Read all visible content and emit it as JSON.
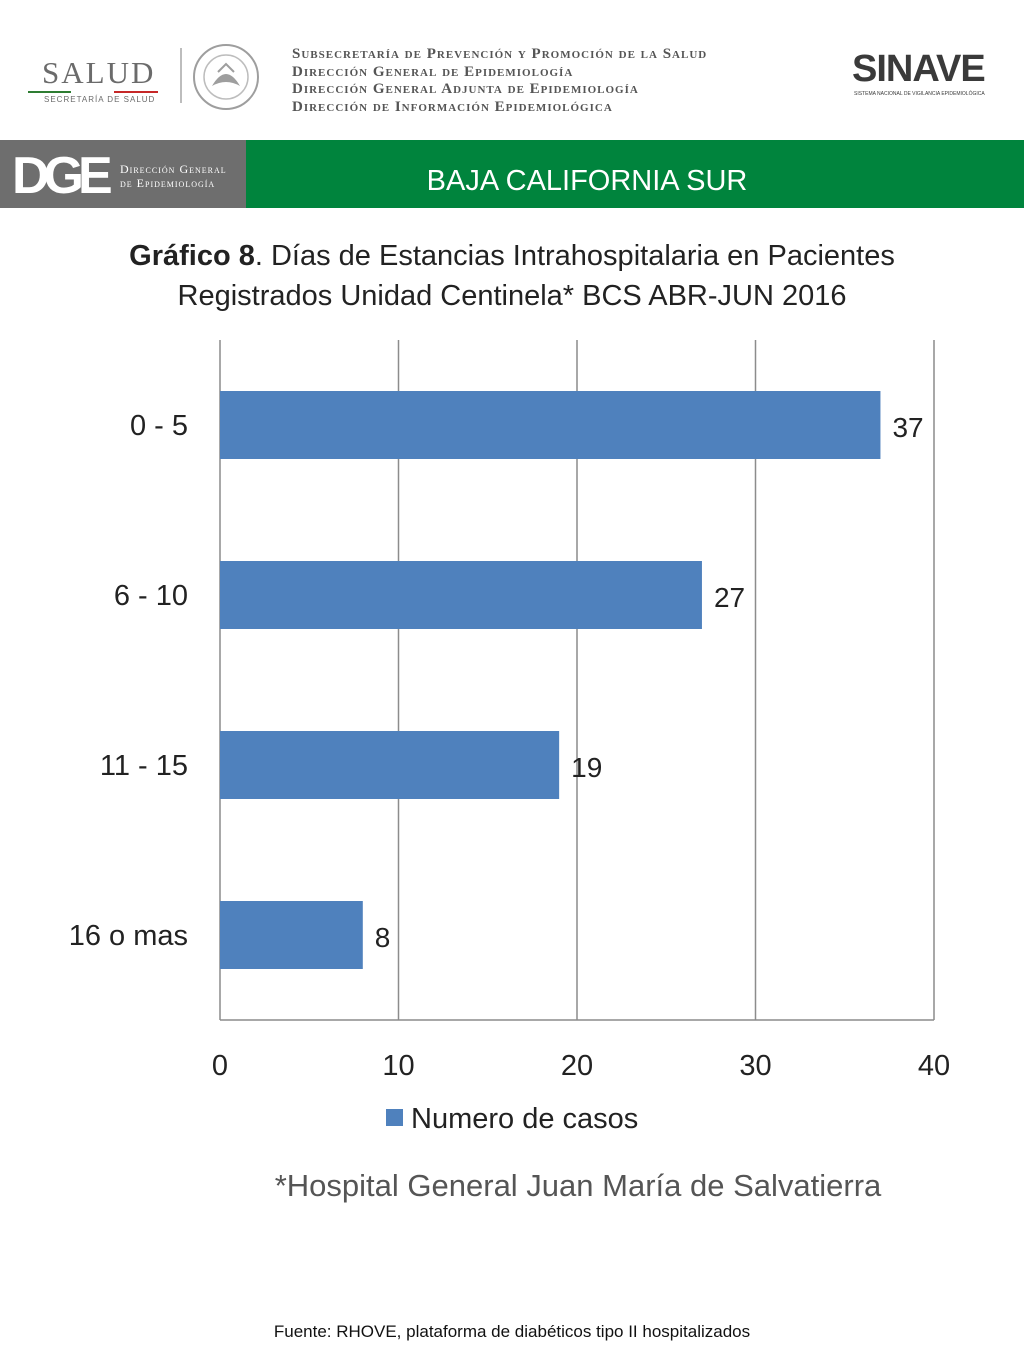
{
  "header": {
    "salud_word": "SALUD",
    "salud_sub": "SECRETARÍA DE SALUD",
    "agency_lines": [
      "Subsecretaría de Prevención y Promoción de la Salud",
      "Dirección General de Epidemiología",
      "Dirección General Adjunta de Epidemiología",
      "Dirección de Información Epidemiológica"
    ],
    "sinave_word": "SINAVE",
    "sinave_sub": "SISTEMA NACIONAL DE VIGILANCIA EPIDEMIOLÓGICA"
  },
  "band": {
    "dge_letters": "DGE",
    "dge_text_line1": "Dirección General",
    "dge_text_line2": "de Epidemiología",
    "region": "BAJA CALIFORNIA SUR"
  },
  "title": {
    "bold": "Gráfico 8",
    "rest_line1": ". Días de Estancias Intrahospitalaria en Pacientes",
    "line2": "Registrados Unidad Centinela* BCS  ABR-JUN 2016"
  },
  "chart_data": {
    "type": "bar",
    "orientation": "horizontal",
    "categories": [
      "0 - 5",
      "6 - 10",
      "11 - 15",
      "16 o mas"
    ],
    "series": [
      {
        "name": "Numero de casos",
        "values": [
          37,
          27,
          19,
          8
        ],
        "color": "#4f81bd"
      }
    ],
    "xlim": [
      0,
      40
    ],
    "xticks": [
      0,
      10,
      20,
      30,
      40
    ],
    "grid": true,
    "legend_position": "bottom"
  },
  "footnote": "*Hospital General Juan María de Salvatierra",
  "source": "Fuente: RHOVE, plataforma de diabéticos tipo II hospitalizados"
}
